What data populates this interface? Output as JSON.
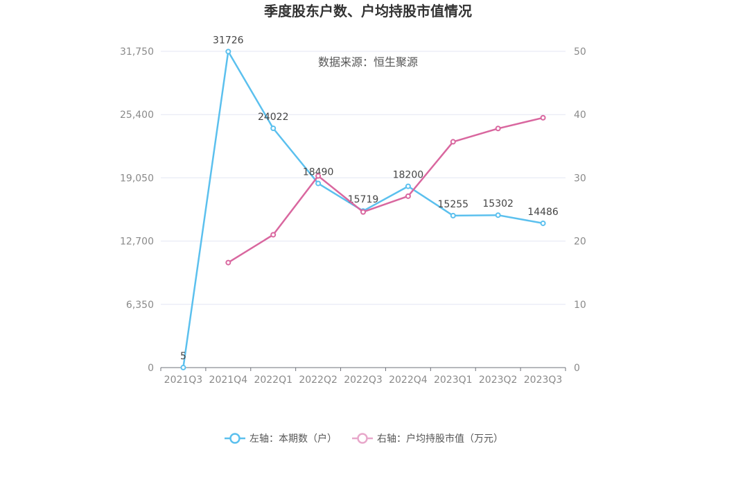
{
  "chart_data": {
    "type": "line",
    "title": "季度股东户数、户均持股市值情况",
    "subtitle": "数据来源：恒生聚源",
    "categories": [
      "2021Q3",
      "2021Q4",
      "2022Q1",
      "2022Q2",
      "2022Q3",
      "2022Q4",
      "2023Q1",
      "2023Q2",
      "2023Q3"
    ],
    "y_left": {
      "ticks": [
        "0",
        "6,350",
        "12,700",
        "19,050",
        "25,400",
        "31,750"
      ],
      "min": 0,
      "max": 31750
    },
    "y_right": {
      "ticks": [
        "0",
        "10",
        "20",
        "30",
        "40",
        "50"
      ],
      "min": 0,
      "max": 50
    },
    "grid": true,
    "legend_position": "bottom",
    "series": [
      {
        "name": "左轴：本期数（户）",
        "axis": "left",
        "color": "#5bc0ee",
        "values": [
          5,
          31726,
          24022,
          18490,
          15719,
          18200,
          15255,
          15302,
          14486
        ],
        "labels": [
          "5",
          "31726",
          "24022",
          "18490",
          "15719",
          "18200",
          "15255",
          "15302",
          "14486"
        ]
      },
      {
        "name": "右轴：户均持股市值（万元）",
        "axis": "right",
        "color": "#d9679f",
        "legend_color": "#e8a8cb",
        "values": [
          null,
          16.6,
          21.0,
          30.3,
          24.6,
          27.1,
          35.7,
          37.8,
          39.5
        ]
      }
    ]
  }
}
